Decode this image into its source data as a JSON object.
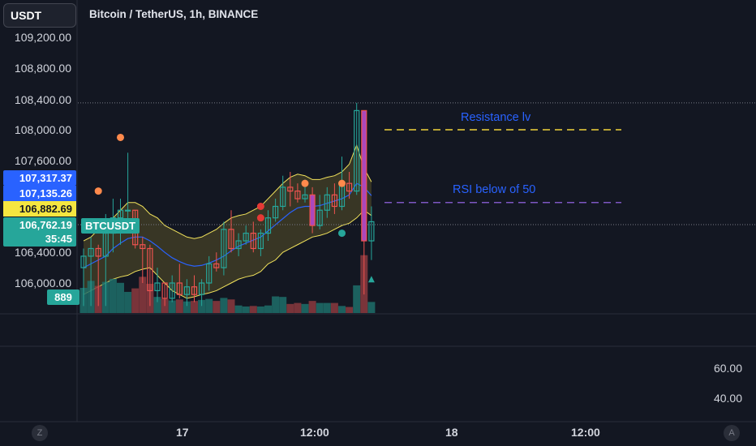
{
  "header": {
    "currency_button": "USDT",
    "symbol_title": "Bitcoin / TetherUS, 1h, BINANCE"
  },
  "price_axis": {
    "labels": [
      "109,200.00",
      "108,800.00",
      "108,400.00",
      "108,000.00",
      "107,600.00",
      "106,400.00",
      "106,000.00"
    ]
  },
  "badges": {
    "upper_band": "107,317.37",
    "mid_band": "107,135.26",
    "lower_band": "106,882.69",
    "last_price": "106,762.19",
    "countdown": "35:45",
    "symbol_tag": "BTCUSDT",
    "volume": "889"
  },
  "rsi_axis": {
    "upper": "60.00",
    "lower": "40.00"
  },
  "time_axis": {
    "labels": [
      "17",
      "12:00",
      "18",
      "12:00"
    ]
  },
  "corner_buttons": {
    "left": "Z",
    "right": "A"
  },
  "annotations": {
    "resistance": "Resistance lv",
    "rsi": "RSI below of 50"
  },
  "colors": {
    "background": "#131722",
    "up": "#26a69a",
    "down": "#ef5350",
    "band": "#f2e35c",
    "basis": "#2962ff",
    "volume_up": "#1f6f6a",
    "volume_down": "#8c3a3e",
    "highlight_candle": "#ab47bc",
    "resistance_line": "#f2d33a",
    "rsi_line": "#7e57c2"
  },
  "chart_data": {
    "type": "candlestick",
    "symbol": "BTCUSDT",
    "interval": "1h",
    "exchange": "BINANCE",
    "price_range": [
      105700,
      109300
    ],
    "candles": [
      {
        "o": 106200,
        "h": 106450,
        "l": 105700,
        "c": 106350,
        "v": 500
      },
      {
        "o": 106350,
        "h": 106600,
        "l": 105700,
        "c": 106450,
        "v": 640
      },
      {
        "o": 106450,
        "h": 106500,
        "l": 105700,
        "c": 106350,
        "v": 540
      },
      {
        "o": 106350,
        "h": 106900,
        "l": 105700,
        "c": 106650,
        "v": 620
      },
      {
        "o": 106650,
        "h": 107100,
        "l": 106400,
        "c": 106850,
        "v": 680
      },
      {
        "o": 106850,
        "h": 107100,
        "l": 106500,
        "c": 106950,
        "v": 600
      },
      {
        "o": 106950,
        "h": 107700,
        "l": 106650,
        "c": 106950,
        "v": 420
      },
      {
        "o": 106950,
        "h": 106950,
        "l": 106450,
        "c": 106500,
        "v": 490
      },
      {
        "o": 106500,
        "h": 106600,
        "l": 106000,
        "c": 106450,
        "v": 720
      },
      {
        "o": 106450,
        "h": 106500,
        "l": 105700,
        "c": 105900,
        "v": 580
      },
      {
        "o": 105900,
        "h": 106200,
        "l": 105750,
        "c": 106000,
        "v": 320
      },
      {
        "o": 106000,
        "h": 106000,
        "l": 105700,
        "c": 105800,
        "v": 280
      },
      {
        "o": 105800,
        "h": 106100,
        "l": 105750,
        "c": 106000,
        "v": 250
      },
      {
        "o": 106000,
        "h": 106250,
        "l": 105800,
        "c": 105850,
        "v": 270
      },
      {
        "o": 105850,
        "h": 106050,
        "l": 105700,
        "c": 105950,
        "v": 230
      },
      {
        "o": 105950,
        "h": 106100,
        "l": 105750,
        "c": 105850,
        "v": 240
      },
      {
        "o": 105850,
        "h": 106050,
        "l": 105700,
        "c": 106000,
        "v": 260
      },
      {
        "o": 106000,
        "h": 106350,
        "l": 105900,
        "c": 106250,
        "v": 280
      },
      {
        "o": 106250,
        "h": 106400,
        "l": 106150,
        "c": 106200,
        "v": 240
      },
      {
        "o": 106200,
        "h": 106800,
        "l": 106100,
        "c": 106700,
        "v": 300
      },
      {
        "o": 106700,
        "h": 106950,
        "l": 106400,
        "c": 106450,
        "v": 270
      },
      {
        "o": 106450,
        "h": 106650,
        "l": 106350,
        "c": 106550,
        "v": 150
      },
      {
        "o": 106550,
        "h": 106750,
        "l": 106500,
        "c": 106650,
        "v": 130
      },
      {
        "o": 106650,
        "h": 106800,
        "l": 106400,
        "c": 106450,
        "v": 140
      },
      {
        "o": 106450,
        "h": 106700,
        "l": 106350,
        "c": 106650,
        "v": 130
      },
      {
        "o": 106650,
        "h": 106950,
        "l": 106550,
        "c": 106850,
        "v": 150
      },
      {
        "o": 106850,
        "h": 107100,
        "l": 106800,
        "c": 107000,
        "v": 330
      },
      {
        "o": 107000,
        "h": 107400,
        "l": 106950,
        "c": 107250,
        "v": 320
      },
      {
        "o": 107250,
        "h": 107450,
        "l": 107000,
        "c": 107200,
        "v": 180
      },
      {
        "o": 107200,
        "h": 107300,
        "l": 107050,
        "c": 107100,
        "v": 200
      },
      {
        "o": 107100,
        "h": 107350,
        "l": 107050,
        "c": 107150,
        "v": 180
      },
      {
        "o": 107150,
        "h": 107250,
        "l": 106650,
        "c": 106750,
        "v": 240
      },
      {
        "o": 106750,
        "h": 107150,
        "l": 106700,
        "c": 106950,
        "v": 200
      },
      {
        "o": 106950,
        "h": 107250,
        "l": 106850,
        "c": 107150,
        "v": 200
      },
      {
        "o": 107150,
        "h": 107300,
        "l": 106900,
        "c": 107000,
        "v": 200
      },
      {
        "o": 107000,
        "h": 107650,
        "l": 106950,
        "c": 107300,
        "v": 140
      },
      {
        "o": 107300,
        "h": 107450,
        "l": 107100,
        "c": 107200,
        "v": 120
      },
      {
        "o": 107200,
        "h": 108350,
        "l": 107150,
        "c": 108250,
        "v": 550
      },
      {
        "o": 108250,
        "h": 108250,
        "l": 105850,
        "c": 106550,
        "v": 1150
      },
      {
        "o": 106550,
        "h": 107000,
        "l": 106300,
        "c": 106800,
        "v": 220
      }
    ],
    "bollinger": {
      "upper": [
        106550,
        106600,
        106700,
        106750,
        106850,
        106950,
        107050,
        107050,
        107000,
        106900,
        106850,
        106750,
        106700,
        106650,
        106600,
        106580,
        106600,
        106650,
        106700,
        106780,
        106850,
        106880,
        106900,
        106950,
        107000,
        107100,
        107200,
        107300,
        107380,
        107420,
        107400,
        107350,
        107350,
        107380,
        107400,
        107450,
        107550,
        107800,
        107500,
        107320
      ],
      "basis": [
        106200,
        106250,
        106300,
        106350,
        106450,
        106520,
        106580,
        106600,
        106600,
        106550,
        106480,
        106400,
        106330,
        106280,
        106240,
        106220,
        106230,
        106260,
        106300,
        106350,
        106420,
        106480,
        106520,
        106560,
        106600,
        106680,
        106760,
        106840,
        106920,
        106980,
        107000,
        107000,
        107010,
        107040,
        107070,
        107100,
        107150,
        107300,
        107250,
        107140
      ],
      "lower": [
        105850,
        105900,
        105950,
        106000,
        106050,
        106080,
        106100,
        106150,
        106180,
        106200,
        106100,
        106000,
        105900,
        105850,
        105800,
        105820,
        105850,
        105870,
        105900,
        105950,
        106000,
        106050,
        106080,
        106100,
        106150,
        106250,
        106300,
        106400,
        106450,
        106500,
        106550,
        106600,
        106620,
        106650,
        106700,
        106750,
        106780,
        106850,
        106950,
        106880
      ]
    },
    "signal_markers": [
      {
        "index": 2,
        "price": 107200,
        "color": "orange",
        "shape": "circle",
        "position": "above"
      },
      {
        "index": 5,
        "price": 107900,
        "color": "orange",
        "shape": "circle",
        "position": "above"
      },
      {
        "index": 24,
        "price": 107000,
        "color": "red",
        "shape": "circle",
        "position": "above"
      },
      {
        "index": 24,
        "price": 106850,
        "color": "red",
        "shape": "circle",
        "position": "above"
      },
      {
        "index": 30,
        "price": 107300,
        "color": "orange",
        "shape": "circle",
        "position": "above"
      },
      {
        "index": 35,
        "price": 107300,
        "color": "orange",
        "shape": "circle",
        "position": "above"
      },
      {
        "index": 35,
        "price": 106650,
        "color": "teal",
        "shape": "circle",
        "position": "below"
      },
      {
        "index": 39,
        "price": 106050,
        "color": "teal",
        "shape": "triangle",
        "position": "below"
      }
    ],
    "highlighted_candles": [
      6,
      31,
      38
    ],
    "horizontal_levels": [
      {
        "price": 108350,
        "style": "dotted",
        "color": "gray"
      },
      {
        "price": 106762.19,
        "style": "dotted",
        "color": "gray"
      }
    ],
    "drawings": [
      {
        "label": "Resistance lv",
        "price": 108000,
        "style": "dashed",
        "color": "yellow"
      },
      {
        "label": "RSI below of 50",
        "price": 107050,
        "style": "dashed",
        "color": "purple"
      }
    ],
    "rsi_levels": [
      60,
      40
    ]
  }
}
